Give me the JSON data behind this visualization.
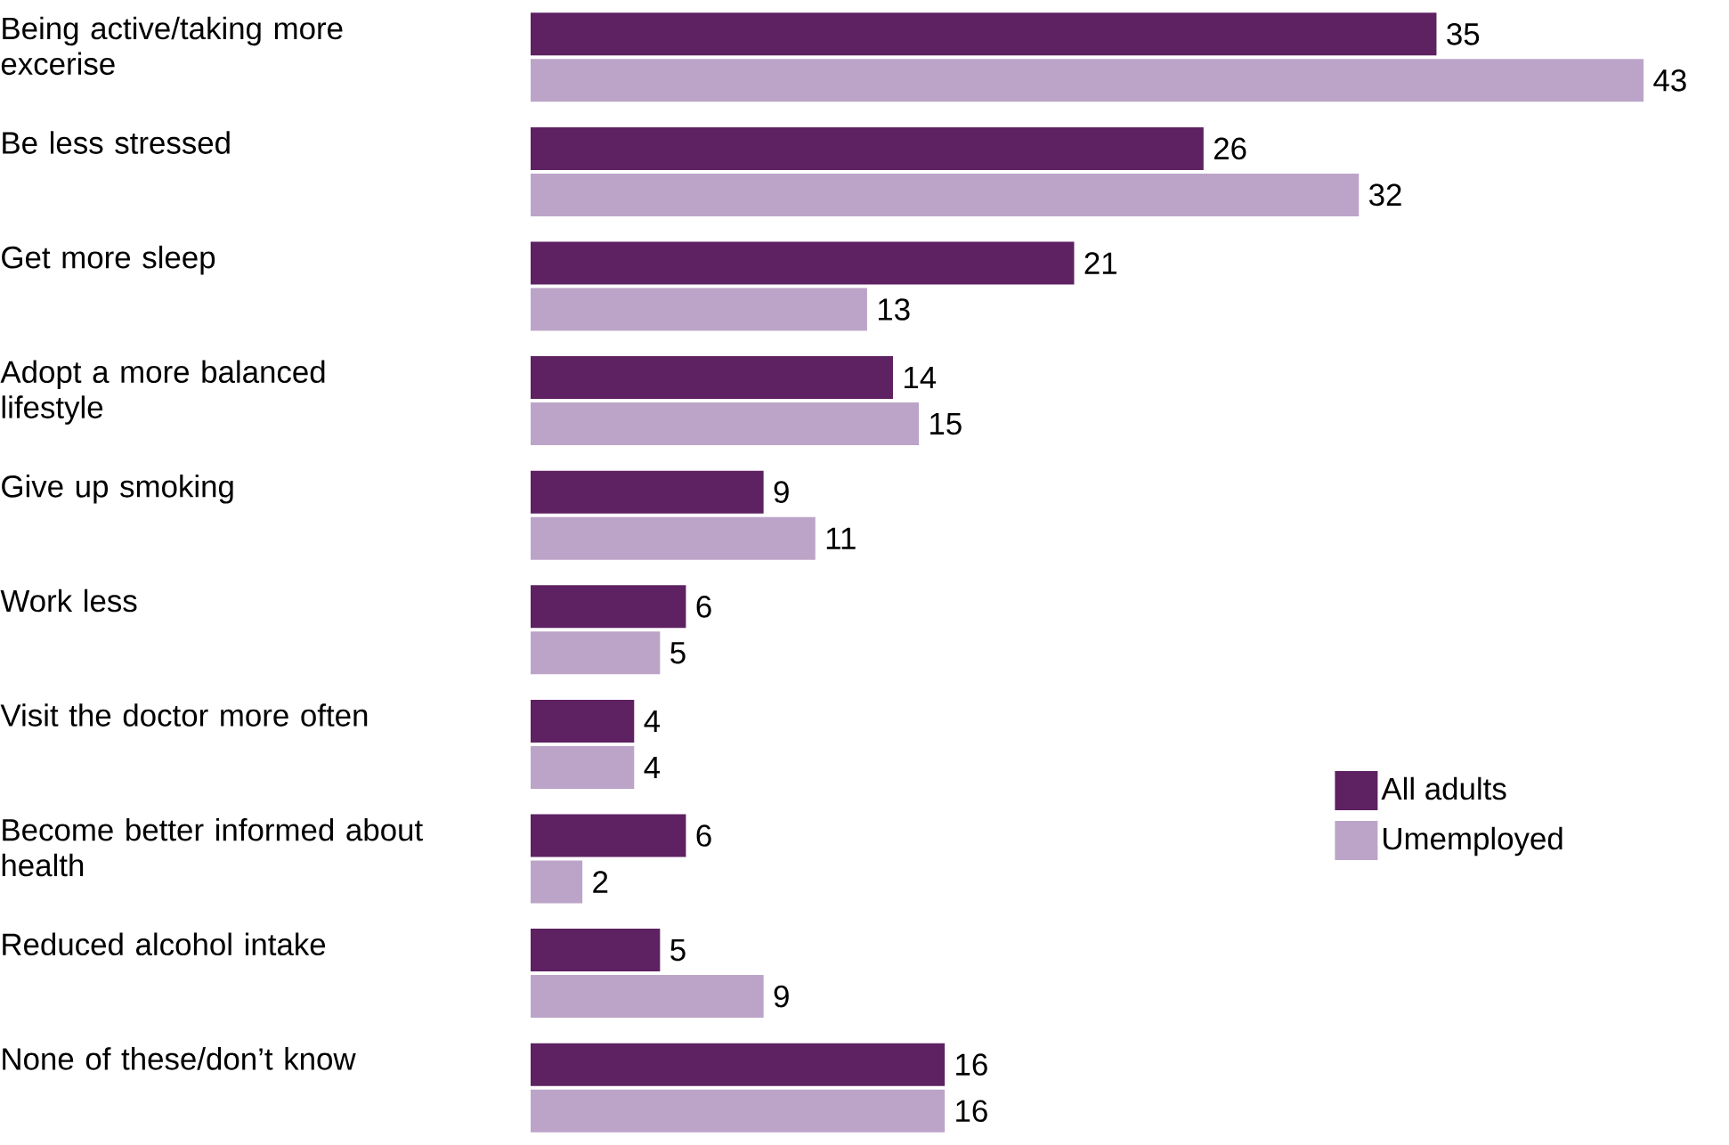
{
  "chart_data": {
    "type": "bar",
    "orientation": "horizontal",
    "categories": [
      "Being active/taking more excerise",
      "Be less stressed",
      "Get more sleep",
      "Adopt a more balanced lifestyle",
      "Give up smoking",
      "Work less",
      "Visit the doctor more often",
      "Become better informed about health",
      "Reduced alcohol intake",
      "None of these/don’t know"
    ],
    "series": [
      {
        "name": "All adults",
        "color": "#5e2162",
        "values": [
          35,
          26,
          21,
          14,
          9,
          6,
          4,
          6,
          5,
          16
        ]
      },
      {
        "name": "Umemployed",
        "color": "#bca4c8",
        "values": [
          43,
          32,
          13,
          15,
          11,
          5,
          4,
          2,
          9,
          16
        ]
      }
    ],
    "data_labels": true,
    "legend": "right"
  }
}
